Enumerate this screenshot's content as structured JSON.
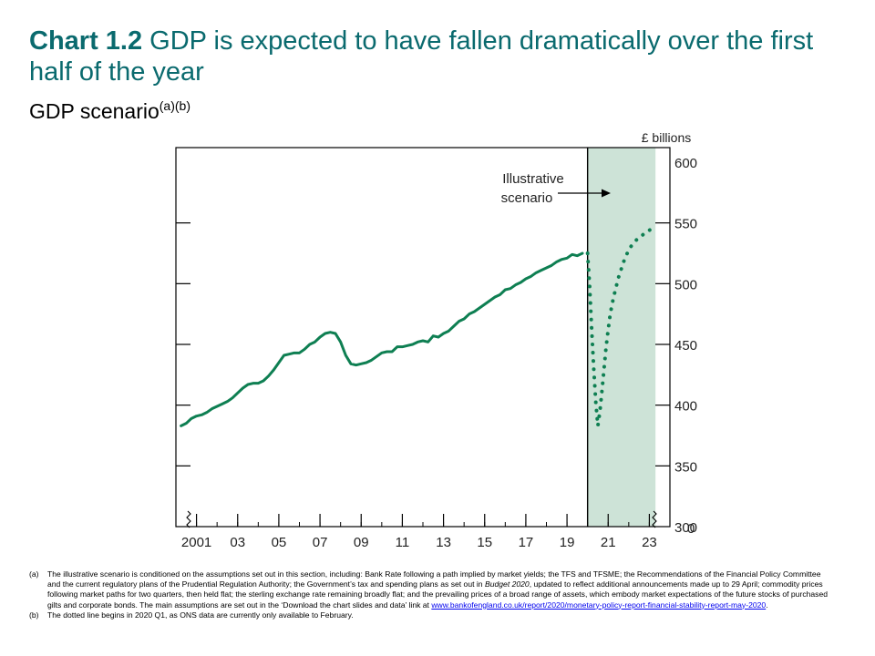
{
  "header": {
    "chart_number": "Chart 1.2",
    "title": "GDP is expected to have fallen dramatically over the first half of the year",
    "subtitle": "GDP scenario",
    "subtitle_sup": "(a)(b)"
  },
  "colors": {
    "title": "#0a6a6e",
    "series": "#0e7f52",
    "shade": "#cde3d7"
  },
  "chart_data": {
    "type": "line",
    "title": "GDP scenario",
    "xlabel": "",
    "ylabel": "£ billions",
    "ylim": [
      300,
      600
    ],
    "yticks": [
      300,
      350,
      400,
      450,
      500,
      550,
      600
    ],
    "ytick_labels": [
      "300",
      "350",
      "400",
      "450",
      "500",
      "550",
      "600"
    ],
    "y_axis_break_label": "0",
    "xlim": [
      2000.0,
      2024.0
    ],
    "xticks": [
      2001,
      2003,
      2005,
      2007,
      2009,
      2011,
      2013,
      2015,
      2017,
      2019,
      2021,
      2023
    ],
    "xtick_labels": [
      "2001",
      "03",
      "05",
      "07",
      "09",
      "11",
      "13",
      "15",
      "17",
      "19",
      "21",
      "23"
    ],
    "shaded_region": [
      2020.0,
      2023.3
    ],
    "annotation": {
      "lines": [
        "Illustrative",
        "scenario"
      ]
    },
    "series": [
      {
        "style": "solid",
        "x": [
          2000.25,
          2000.5,
          2000.75,
          2001.0,
          2001.25,
          2001.5,
          2001.75,
          2002.0,
          2002.25,
          2002.5,
          2002.75,
          2003.0,
          2003.25,
          2003.5,
          2003.75,
          2004.0,
          2004.25,
          2004.5,
          2004.75,
          2005.0,
          2005.25,
          2005.5,
          2005.75,
          2006.0,
          2006.25,
          2006.5,
          2006.75,
          2007.0,
          2007.25,
          2007.5,
          2007.75,
          2008.0,
          2008.25,
          2008.5,
          2008.75,
          2009.0,
          2009.25,
          2009.5,
          2009.75,
          2010.0,
          2010.25,
          2010.5,
          2010.75,
          2011.0,
          2011.25,
          2011.5,
          2011.75,
          2012.0,
          2012.25,
          2012.5,
          2012.75,
          2013.0,
          2013.25,
          2013.5,
          2013.75,
          2014.0,
          2014.25,
          2014.5,
          2014.75,
          2015.0,
          2015.25,
          2015.5,
          2015.75,
          2016.0,
          2016.25,
          2016.5,
          2016.75,
          2017.0,
          2017.25,
          2017.5,
          2017.75,
          2018.0,
          2018.25,
          2018.5,
          2018.75,
          2019.0,
          2019.25,
          2019.5,
          2019.75
        ],
        "values": [
          383,
          385,
          389,
          391,
          392,
          394,
          397,
          399,
          401,
          403,
          406,
          410,
          414,
          417,
          418,
          418,
          420,
          424,
          429,
          435,
          441,
          442,
          443,
          443,
          446,
          450,
          452,
          456,
          459,
          460,
          459,
          452,
          441,
          434,
          433,
          434,
          435,
          437,
          440,
          443,
          444,
          444,
          448,
          448,
          449,
          450,
          452,
          453,
          452,
          457,
          456,
          459,
          461,
          465,
          469,
          471,
          475,
          477,
          480,
          483,
          486,
          489,
          491,
          495,
          496,
          499,
          501,
          504,
          506,
          509,
          511,
          513,
          515,
          518,
          520,
          521,
          524,
          523,
          525
        ]
      },
      {
        "style": "dotted",
        "x": [
          2020.0,
          2020.1,
          2020.2,
          2020.3,
          2020.4,
          2020.5,
          2020.6,
          2020.7,
          2020.8,
          2020.9,
          2021.0,
          2021.1,
          2021.25,
          2021.5,
          2021.75,
          2022.0,
          2022.25,
          2022.5,
          2022.75,
          2023.0,
          2023.25
        ],
        "values": [
          525,
          498,
          462,
          430,
          402,
          383,
          395,
          412,
          430,
          448,
          462,
          475,
          488,
          505,
          518,
          528,
          534,
          538,
          541,
          544,
          546
        ]
      }
    ]
  },
  "notes": [
    {
      "mark": "(a)",
      "text": "The illustrative scenario is conditioned on the assumptions set out in this section, including: Bank Rate following a path implied by market yields; the TFS and TFSME; the Recommendations of the Financial Policy Committee and the current regulatory plans of the Prudential Regulation Authority; the Government’s tax and spending plans as set out in ",
      "italic": "Budget 2020",
      "text2": ", updated to reflect additional announcements made up to 29 April; commodity prices following market paths for two quarters, then held flat; the sterling exchange rate remaining broadly flat; and the prevailing prices of a broad range of assets, which embody market expectations of the future stocks of purchased gilts and corporate bonds. The main assumptions are set out in the ‘Download the chart slides and data’ link at ",
      "link": "www.bankofengland.co.uk/report/2020/monetary-policy-report-financial-stability-report-may-2020",
      "text3": "."
    },
    {
      "mark": "(b)",
      "text": "The dotted line begins in 2020 Q1, as ONS data are currently only available to February."
    }
  ]
}
